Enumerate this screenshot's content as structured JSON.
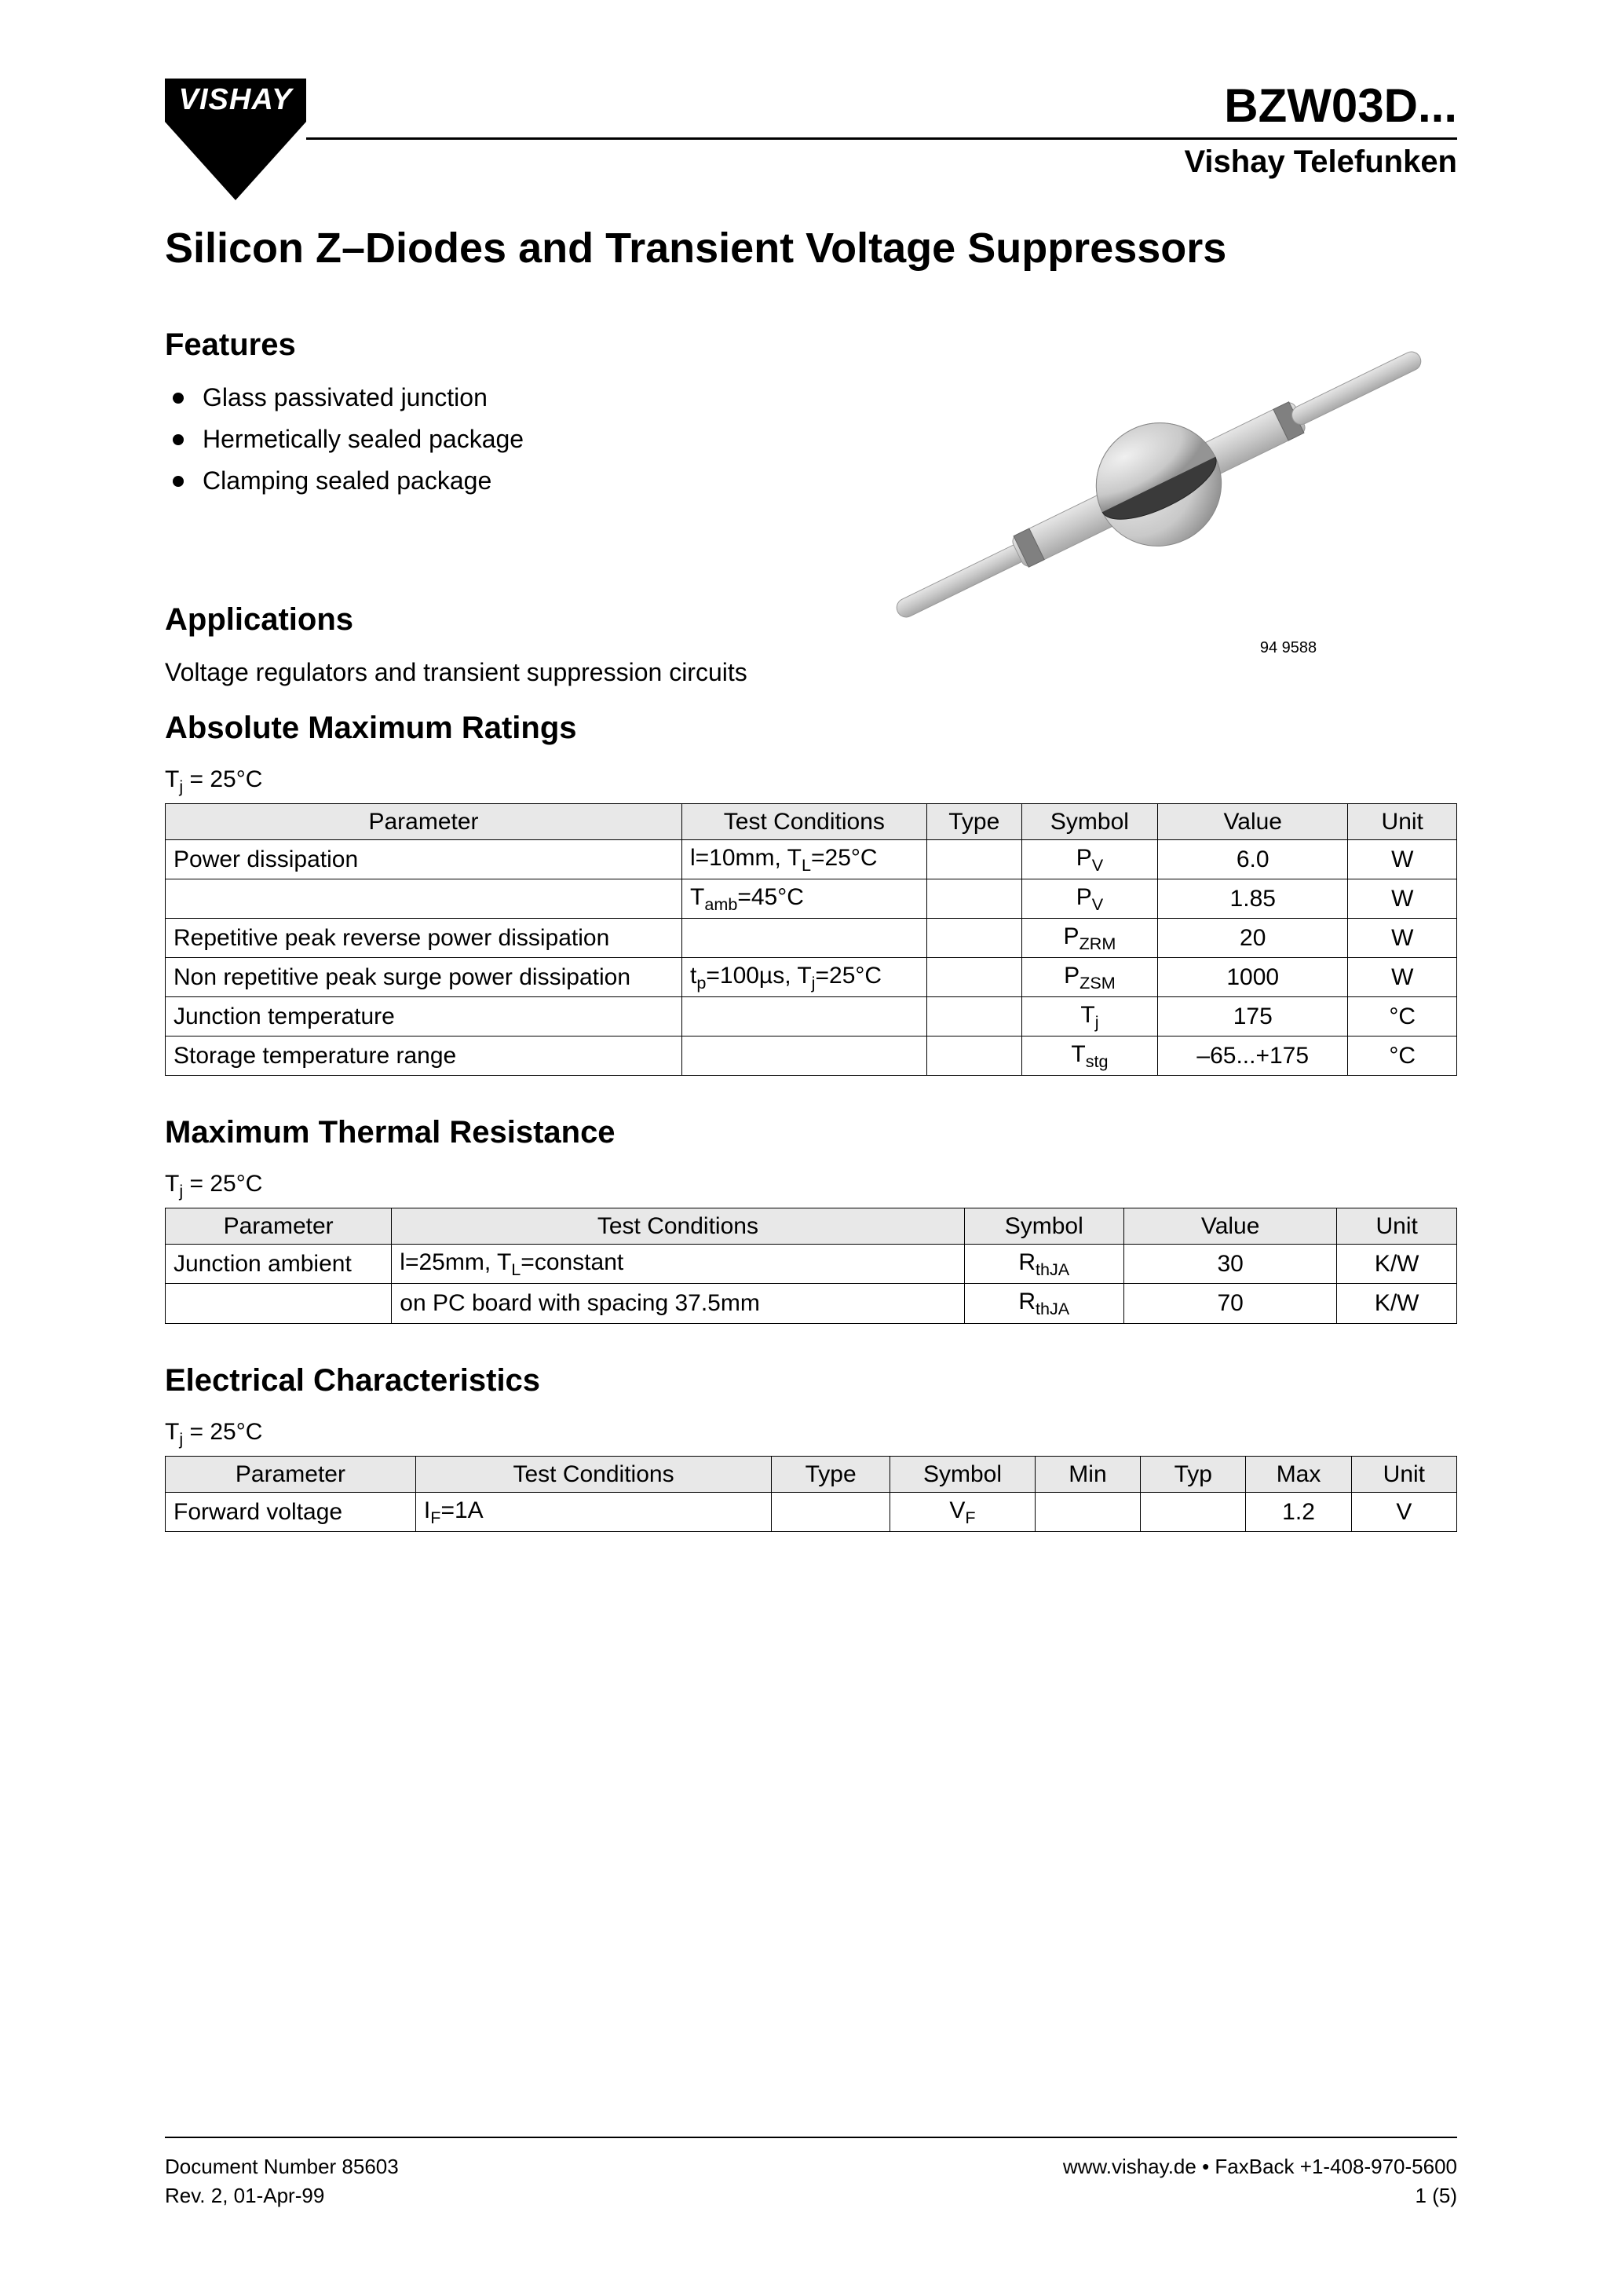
{
  "header": {
    "logo_text": "VISHAY",
    "part_number": "BZW03D...",
    "brand": "Vishay Telefunken"
  },
  "title": "Silicon Z–Diodes and Transient Voltage Suppressors",
  "features": {
    "heading": "Features",
    "items": [
      "Glass passivated junction",
      "Hermetically sealed package",
      "Clamping sealed package"
    ]
  },
  "applications": {
    "heading": "Applications",
    "text": "Voltage regulators and transient suppression circuits"
  },
  "figure": {
    "number": "94 9588",
    "colors": {
      "body": "#c9c9c9",
      "body_stroke": "#999999",
      "band": "#4a4a4a",
      "lead": "#c9c9c9"
    }
  },
  "amr": {
    "heading": "Absolute Maximum Ratings",
    "note": "Tj = 25°C",
    "columns": [
      "Parameter",
      "Test Conditions",
      "Type",
      "Symbol",
      "Value",
      "Unit"
    ],
    "rows": [
      {
        "param": "Power dissipation",
        "cond_html": "l=10mm, T<sub>L</sub>=25°C",
        "type": "",
        "symbol_html": "P<sub>V</sub>",
        "value": "6.0",
        "unit": "W"
      },
      {
        "param": "",
        "cond_html": "T<sub>amb</sub>=45°C",
        "type": "",
        "symbol_html": "P<sub>V</sub>",
        "value": "1.85",
        "unit": "W"
      },
      {
        "param": "Repetitive peak reverse power dissipation",
        "cond_html": "",
        "type": "",
        "symbol_html": "P<sub>ZRM</sub>",
        "value": "20",
        "unit": "W"
      },
      {
        "param": "Non repetitive peak surge power dissipation",
        "cond_html": "t<sub>p</sub>=100µs, T<sub>j</sub>=25°C",
        "type": "",
        "symbol_html": "P<sub>ZSM</sub>",
        "value": "1000",
        "unit": "W"
      },
      {
        "param": "Junction temperature",
        "cond_html": "",
        "type": "",
        "symbol_html": "T<sub>j</sub>",
        "value": "175",
        "unit": "°C"
      },
      {
        "param": "Storage temperature range",
        "cond_html": "",
        "type": "",
        "symbol_html": "T<sub>stg</sub>",
        "value": "–65...+175",
        "unit": "°C"
      }
    ],
    "col_widths": [
      "38%",
      "18%",
      "7%",
      "10%",
      "14%",
      "8%"
    ]
  },
  "mtr": {
    "heading": "Maximum Thermal Resistance",
    "note": "Tj = 25°C",
    "columns": [
      "Parameter",
      "Test Conditions",
      "Symbol",
      "Value",
      "Unit"
    ],
    "rows": [
      {
        "param": "Junction ambient",
        "cond_html": "l=25mm, T<sub>L</sub>=constant",
        "symbol_html": "R<sub>thJA</sub>",
        "value": "30",
        "unit": "K/W"
      },
      {
        "param": "",
        "cond_html": "on PC board with spacing 37.5mm",
        "symbol_html": "R<sub>thJA</sub>",
        "value": "70",
        "unit": "K/W"
      }
    ],
    "col_widths": [
      "17%",
      "43%",
      "12%",
      "16%",
      "9%"
    ]
  },
  "ec": {
    "heading": "Electrical Characteristics",
    "note": "Tj = 25°C",
    "columns": [
      "Parameter",
      "Test Conditions",
      "Type",
      "Symbol",
      "Min",
      "Typ",
      "Max",
      "Unit"
    ],
    "rows": [
      {
        "param": "Forward voltage",
        "cond_html": "I<sub>F</sub>=1A",
        "type": "",
        "symbol_html": "V<sub>F</sub>",
        "min": "",
        "typ": "",
        "max": "1.2",
        "unit": "V"
      }
    ],
    "col_widths": [
      "19%",
      "27%",
      "9%",
      "11%",
      "8%",
      "8%",
      "8%",
      "8%"
    ]
  },
  "footer": {
    "doc_num": "Document Number 85603",
    "rev": "Rev. 2, 01-Apr-99",
    "url_line": "www.vishay.de • FaxBack +1-408-970-5600",
    "page": "1 (5)"
  }
}
